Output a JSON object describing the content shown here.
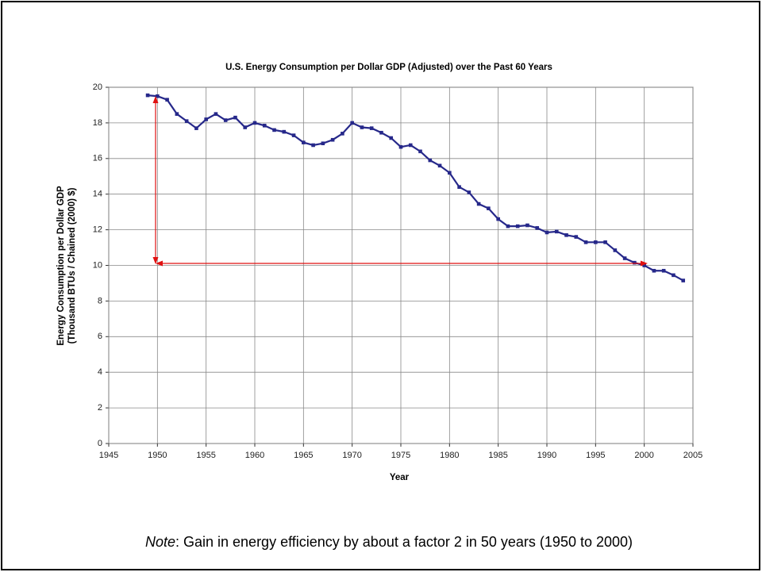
{
  "chart_data": {
    "type": "line",
    "title": "U.S. Energy Consumption per Dollar GDP (Adjusted) over the Past 60 Years",
    "ylabel_lines": [
      "Energy Consumption per Dollar GDP",
      "(Thousand BTUs / Chained (2000) $)"
    ],
    "xlabel": "Year",
    "note_label": "Note",
    "note_text": ": Gain in energy efficiency by about a factor 2 in 50 years (1950 to 2000)",
    "x": [
      1949,
      1950,
      1951,
      1952,
      1953,
      1954,
      1955,
      1956,
      1957,
      1958,
      1959,
      1960,
      1961,
      1962,
      1963,
      1964,
      1965,
      1966,
      1967,
      1968,
      1969,
      1970,
      1971,
      1972,
      1973,
      1974,
      1975,
      1976,
      1977,
      1978,
      1979,
      1980,
      1981,
      1982,
      1983,
      1984,
      1985,
      1986,
      1987,
      1988,
      1989,
      1990,
      1991,
      1992,
      1993,
      1994,
      1995,
      1996,
      1997,
      1998,
      1999,
      2000,
      2001,
      2002,
      2003,
      2004
    ],
    "series": [
      {
        "color": "#26288a",
        "values": [
          19.55,
          19.5,
          19.3,
          18.5,
          18.1,
          17.7,
          18.2,
          18.5,
          18.15,
          18.3,
          17.75,
          18.0,
          17.85,
          17.6,
          17.5,
          17.3,
          16.9,
          16.75,
          16.85,
          17.05,
          17.4,
          18.0,
          17.75,
          17.7,
          17.45,
          17.15,
          16.65,
          16.75,
          16.4,
          15.9,
          15.6,
          15.2,
          14.4,
          14.1,
          13.45,
          13.2,
          12.6,
          12.2,
          12.2,
          12.25,
          12.1,
          11.85,
          11.9,
          11.7,
          11.6,
          11.3,
          11.3,
          11.3,
          10.85,
          10.4,
          10.15,
          10.0,
          9.7,
          9.7,
          9.45,
          9.15
        ]
      }
    ],
    "xlim": [
      1945,
      2005
    ],
    "xticks": [
      1945,
      1950,
      1955,
      1960,
      1965,
      1970,
      1975,
      1980,
      1985,
      1990,
      1995,
      2000,
      2005
    ],
    "ylim": [
      0,
      20
    ],
    "yticks": [
      0,
      2,
      4,
      6,
      8,
      10,
      12,
      14,
      16,
      18,
      20
    ],
    "grid": true
  }
}
